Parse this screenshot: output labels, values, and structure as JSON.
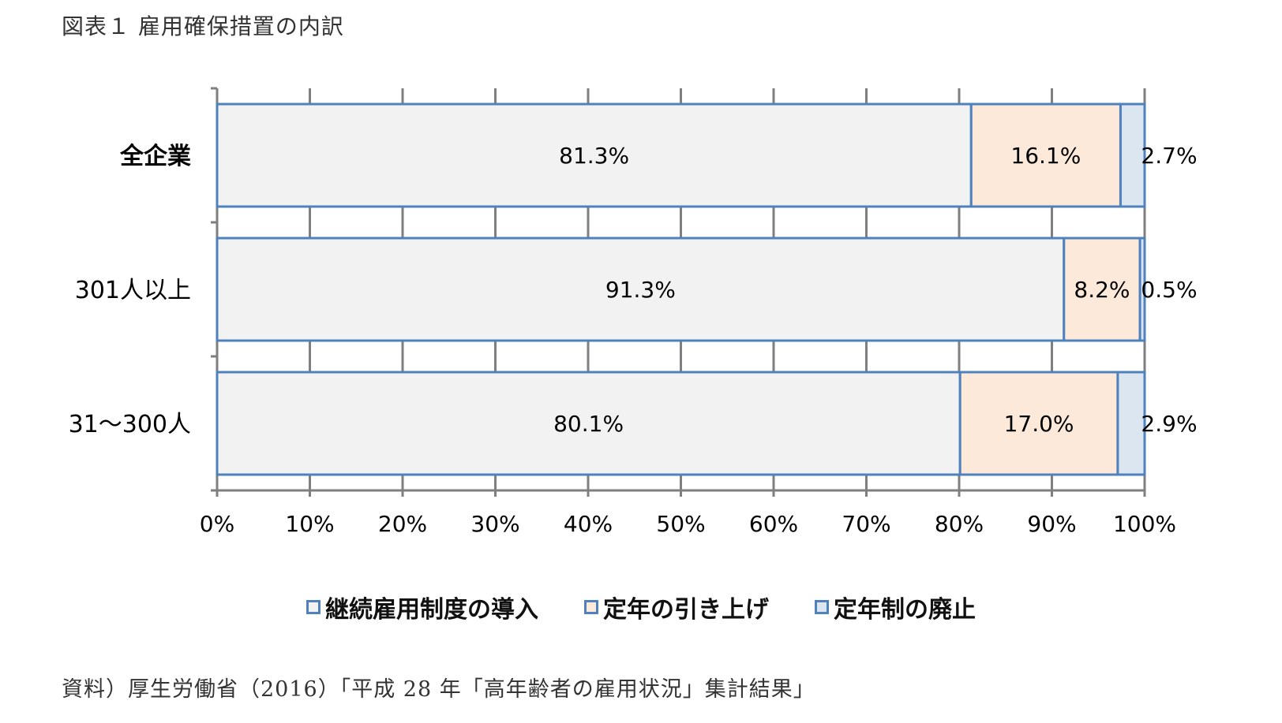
{
  "figure_title": "図表１ 雇用確保措置の内訳",
  "source_note": "資料）厚生労働省（2016）「平成 28 年「高年齢者の雇用状況」集計結果」",
  "colors": {
    "series": [
      "#f2f2f2",
      "#fde9d9",
      "#dce6f1"
    ],
    "border": "#4f81bd",
    "grid": "#7f7f7f",
    "text": "#000000"
  },
  "chart_data": {
    "type": "bar",
    "orientation": "horizontal",
    "stacked": "100%",
    "categories": [
      "全企業",
      "301人以上",
      "31～300人"
    ],
    "series": [
      {
        "name": "継続雇用制度の導入",
        "values": [
          81.3,
          91.3,
          80.1
        ],
        "labels": [
          "81.3%",
          "91.3%",
          "80.1%"
        ]
      },
      {
        "name": "定年の引き上げ",
        "values": [
          16.1,
          8.2,
          17.0
        ],
        "labels": [
          "16.1%",
          "8.2%",
          "17.0%"
        ]
      },
      {
        "name": "定年制の廃止",
        "values": [
          2.7,
          0.5,
          2.9
        ],
        "labels": [
          "2.7%",
          "0.5%",
          "2.9%"
        ]
      }
    ],
    "xlim": [
      0,
      100
    ],
    "xticks": [
      "0%",
      "10%",
      "20%",
      "30%",
      "40%",
      "50%",
      "60%",
      "70%",
      "80%",
      "90%",
      "100%"
    ],
    "grid": true,
    "legend_position": "bottom"
  }
}
